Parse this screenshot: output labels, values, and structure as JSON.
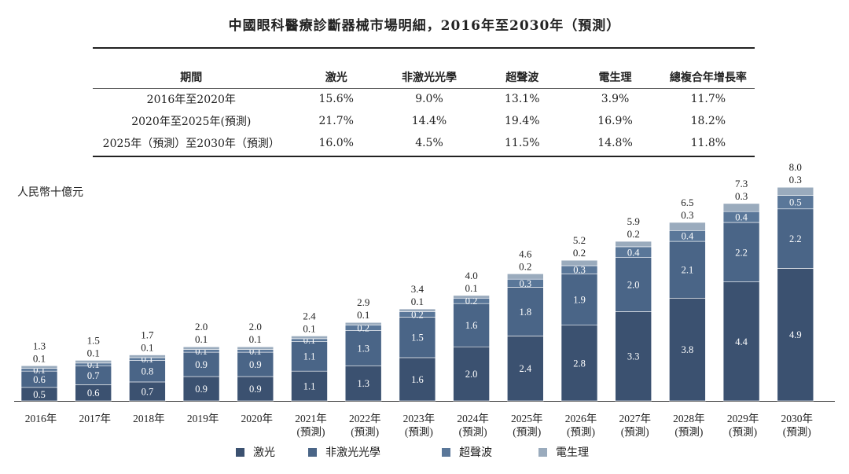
{
  "title": "中國眼科醫療診斷器械市場明細，2016年至2030年（預測）",
  "table": {
    "headers": [
      "期間",
      "激光",
      "非激光光學",
      "超聲波",
      "電生理",
      "總複合年增長率"
    ],
    "rows": [
      [
        "2016年至2020年",
        "15.6%",
        "9.0%",
        "13.1%",
        "3.9%",
        "11.7%"
      ],
      [
        "2020年至2025年(預測)",
        "21.7%",
        "14.4%",
        "19.4%",
        "16.9%",
        "18.2%"
      ],
      [
        "2025年（預測）至2030年（預測）",
        "16.0%",
        "4.5%",
        "11.5%",
        "14.8%",
        "11.8%"
      ]
    ]
  },
  "chart_data": {
    "type": "bar",
    "stacked": true,
    "ylabel": "人民幣十億元",
    "categories": [
      [
        "2016年",
        ""
      ],
      [
        "2017年",
        ""
      ],
      [
        "2018年",
        ""
      ],
      [
        "2019年",
        ""
      ],
      [
        "2020年",
        ""
      ],
      [
        "2021年",
        "(預測)"
      ],
      [
        "2022年",
        "(預測)"
      ],
      [
        "2023年",
        "(預測)"
      ],
      [
        "2024年",
        "(預測)"
      ],
      [
        "2025年",
        "(預測)"
      ],
      [
        "2026年",
        "(預測)"
      ],
      [
        "2027年",
        "(預測)"
      ],
      [
        "2028年",
        "(預測)"
      ],
      [
        "2029年",
        "(預測)"
      ],
      [
        "2030年",
        "(預測)"
      ]
    ],
    "series": [
      {
        "name": "激光",
        "color": "#3b5170",
        "values": [
          0.5,
          0.6,
          0.7,
          0.9,
          0.9,
          1.1,
          1.3,
          1.6,
          2.0,
          2.4,
          2.8,
          3.3,
          3.8,
          4.4,
          4.9
        ]
      },
      {
        "name": "非激光光學",
        "color": "#4a6587",
        "values": [
          0.6,
          0.7,
          0.8,
          0.9,
          0.9,
          1.1,
          1.3,
          1.5,
          1.6,
          1.8,
          1.9,
          2.0,
          2.1,
          2.2,
          2.2
        ]
      },
      {
        "name": "超聲波",
        "color": "#5a7799",
        "values": [
          0.1,
          0.1,
          0.1,
          0.1,
          0.1,
          0.1,
          0.2,
          0.2,
          0.2,
          0.3,
          0.3,
          0.4,
          0.4,
          0.4,
          0.5
        ]
      },
      {
        "name": "電生理",
        "color": "#9aabbd",
        "values": [
          0.1,
          0.1,
          0.1,
          0.1,
          0.1,
          0.1,
          0.1,
          0.1,
          0.1,
          0.2,
          0.2,
          0.2,
          0.3,
          0.3,
          0.3
        ]
      }
    ],
    "totals": [
      1.3,
      1.5,
      1.7,
      2.0,
      2.0,
      2.4,
      2.9,
      3.4,
      4.0,
      4.6,
      5.2,
      5.9,
      6.5,
      7.3,
      8.0
    ],
    "ylim": [
      0,
      8.0
    ],
    "legend_position": "bottom"
  }
}
